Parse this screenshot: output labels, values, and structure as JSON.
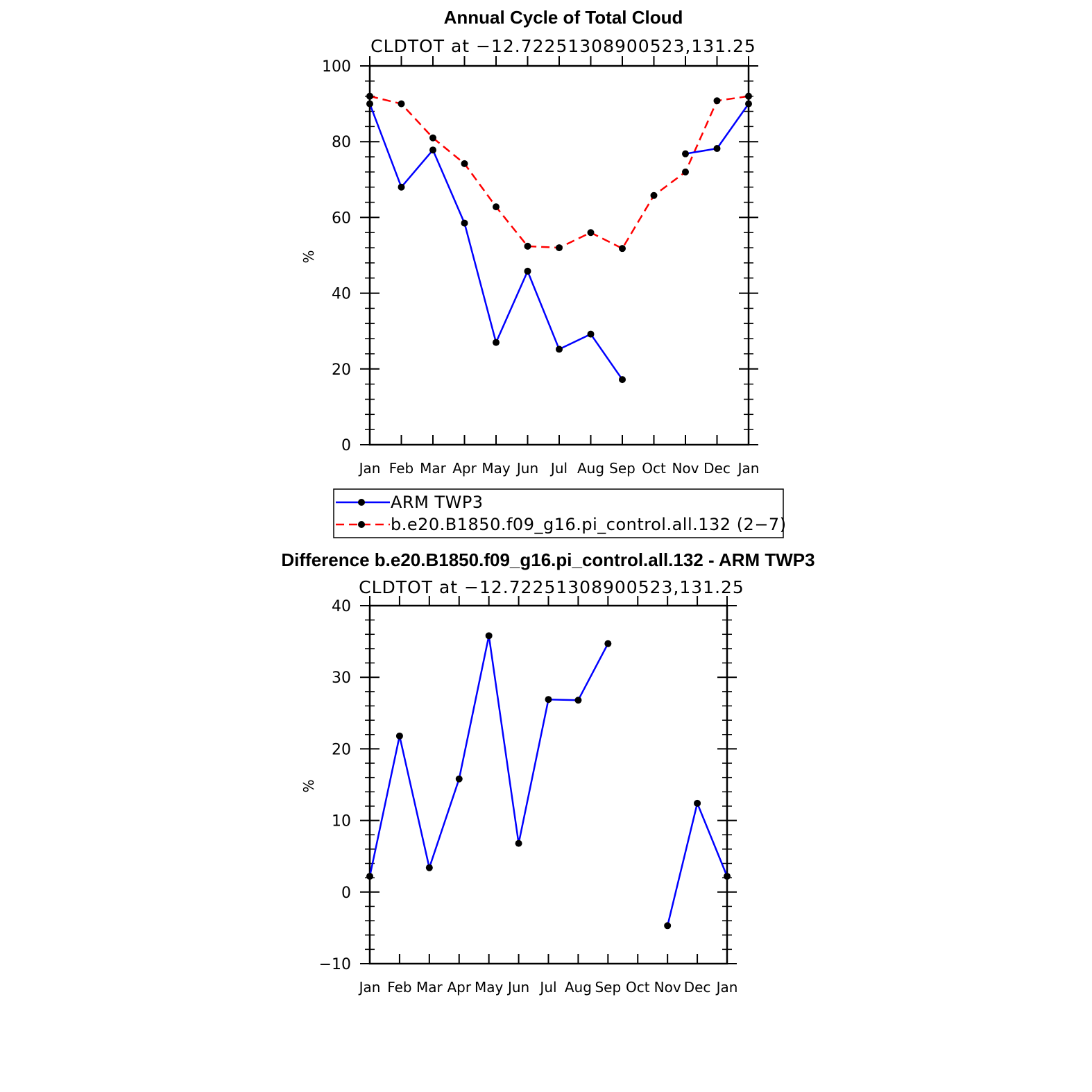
{
  "chart_data": [
    {
      "type": "line",
      "title": "Annual Cycle of Total Cloud",
      "subtitle": "CLDTOT at −12.72251308900523,131.25",
      "ylabel": "%",
      "xlabel": "",
      "categories": [
        "Jan",
        "Feb",
        "Mar",
        "Apr",
        "May",
        "Jun",
        "Jul",
        "Aug",
        "Sep",
        "Oct",
        "Nov",
        "Dec",
        "Jan"
      ],
      "ylim": [
        0,
        100
      ],
      "yticks": [
        "0",
        "20",
        "40",
        "60",
        "80",
        "100"
      ],
      "grid": false,
      "legend": "bottom",
      "series": [
        {
          "name": "ARM TWP3",
          "color": "#0000ff",
          "style": "solid",
          "values": [
            90,
            68,
            77.8,
            58.5,
            27,
            45.8,
            25.2,
            29.2,
            17.2,
            null,
            76.8,
            78.2,
            90
          ]
        },
        {
          "name": "b.e20.B1850.f09_g16.pi_control.all.132 (2−7)",
          "color": "#ff0000",
          "style": "dashed",
          "values": [
            92,
            90,
            81,
            74.2,
            62.8,
            52.4,
            52,
            56,
            51.8,
            65.8,
            72,
            90.8,
            92
          ]
        }
      ]
    },
    {
      "type": "line",
      "title": "Difference b.e20.B1850.f09_g16.pi_control.all.132 - ARM TWP3",
      "subtitle": "CLDTOT at −12.72251308900523,131.25",
      "ylabel": "%",
      "xlabel": "",
      "categories": [
        "Jan",
        "Feb",
        "Mar",
        "Apr",
        "May",
        "Jun",
        "Jul",
        "Aug",
        "Sep",
        "Oct",
        "Nov",
        "Dec",
        "Jan"
      ],
      "ylim": [
        -10,
        40
      ],
      "yticks": [
        "−10",
        "0",
        "10",
        "20",
        "30",
        "40"
      ],
      "grid": false,
      "series": [
        {
          "color": "#0000ff",
          "style": "solid",
          "values": [
            2.2,
            21.8,
            3.4,
            15.8,
            35.8,
            6.8,
            26.9,
            26.8,
            34.7,
            null,
            -4.7,
            12.4,
            2.2
          ]
        }
      ]
    }
  ]
}
